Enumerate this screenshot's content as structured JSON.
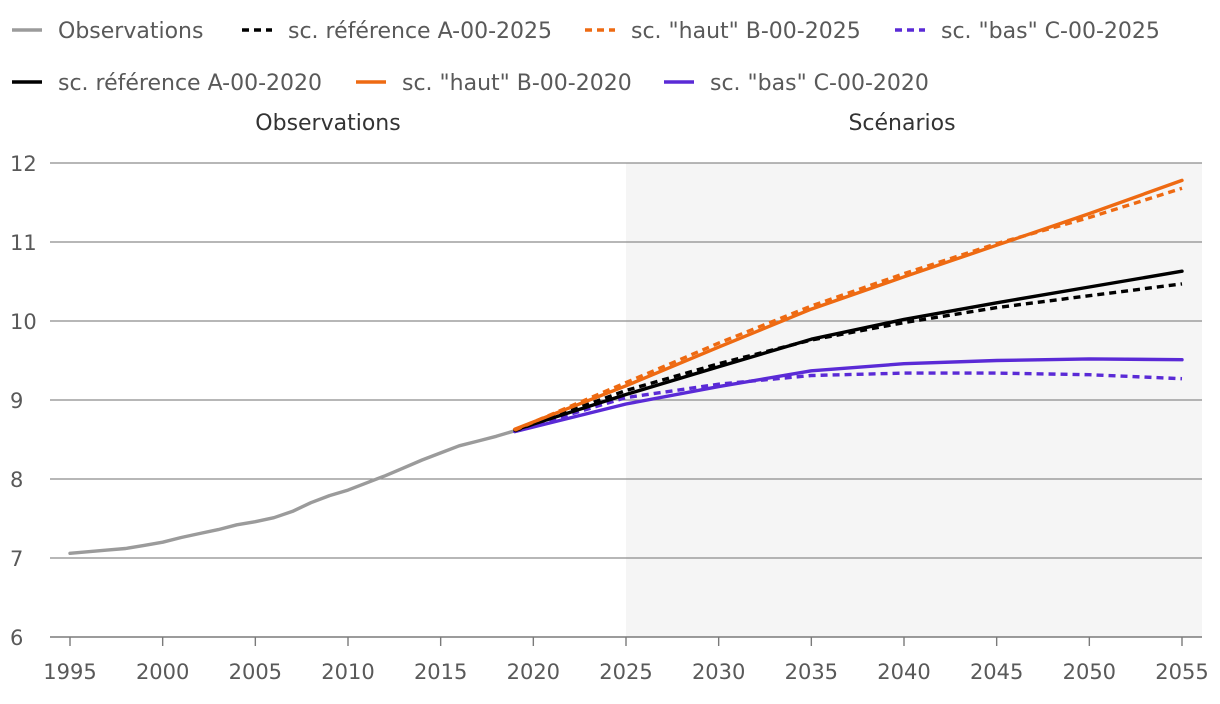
{
  "chart_data": {
    "type": "line",
    "title": "",
    "xlabel": "",
    "ylabel": "",
    "xlim": [
      1995,
      2055
    ],
    "ylim": [
      6,
      12
    ],
    "xticks": [
      "1995",
      "2000",
      "2005",
      "2010",
      "2015",
      "2020",
      "2025",
      "2030",
      "2035",
      "2040",
      "2045",
      "2050",
      "2055"
    ],
    "yticks": [
      "6",
      "7",
      "8",
      "9",
      "10",
      "11",
      "12"
    ],
    "grid": true,
    "legend_position": "top",
    "regions": [
      {
        "label": "Observations",
        "from": 1995,
        "to": 2025
      },
      {
        "label": "Scénarios",
        "from": 2025,
        "to": 2056,
        "shaded": true
      }
    ],
    "series": [
      {
        "name": "Observations",
        "color": "#9b9b9b",
        "dash": "solid",
        "x": [
          1995,
          1996,
          1997,
          1998,
          1999,
          2000,
          2001,
          2002,
          2003,
          2004,
          2005,
          2006,
          2007,
          2008,
          2009,
          2010,
          2011,
          2012,
          2013,
          2014,
          2015,
          2016,
          2017,
          2018,
          2019
        ],
        "y": [
          7.06,
          7.08,
          7.1,
          7.12,
          7.16,
          7.2,
          7.26,
          7.31,
          7.36,
          7.42,
          7.46,
          7.51,
          7.59,
          7.7,
          7.79,
          7.86,
          7.95,
          8.04,
          8.14,
          8.24,
          8.33,
          8.42,
          8.48,
          8.54,
          8.61
        ]
      },
      {
        "name": "sc. référence A-00-2025",
        "color": "#000000",
        "dash": "dashed",
        "x": [
          2019,
          2025,
          2030,
          2035,
          2040,
          2045,
          2050,
          2055
        ],
        "y": [
          8.61,
          9.12,
          9.46,
          9.76,
          9.98,
          10.17,
          10.32,
          10.47
        ]
      },
      {
        "name": "sc. \"haut\" B-00-2025",
        "color": "#ee6a12",
        "dash": "dashed",
        "x": [
          2019,
          2025,
          2030,
          2035,
          2040,
          2045,
          2050,
          2055
        ],
        "y": [
          8.62,
          9.22,
          9.72,
          10.19,
          10.6,
          10.98,
          11.31,
          11.68
        ]
      },
      {
        "name": "sc. \"bas\" C-00-2025",
        "color": "#5a2ad6",
        "dash": "dashed",
        "x": [
          2019,
          2025,
          2030,
          2035,
          2040,
          2045,
          2050,
          2055
        ],
        "y": [
          8.61,
          9.03,
          9.2,
          9.31,
          9.34,
          9.34,
          9.32,
          9.27
        ]
      },
      {
        "name": "sc. référence A-00-2020",
        "color": "#000000",
        "dash": "solid",
        "x": [
          2019,
          2025,
          2030,
          2035,
          2040,
          2045,
          2050,
          2055
        ],
        "y": [
          8.62,
          9.07,
          9.42,
          9.77,
          10.02,
          10.23,
          10.43,
          10.63
        ]
      },
      {
        "name": "sc. \"haut\" B-00-2020",
        "color": "#ee6a12",
        "dash": "solid",
        "x": [
          2019,
          2025,
          2030,
          2035,
          2040,
          2045,
          2050,
          2055
        ],
        "y": [
          8.63,
          9.18,
          9.67,
          10.15,
          10.56,
          10.96,
          11.36,
          11.78
        ]
      },
      {
        "name": "sc. \"bas\" C-00-2020",
        "color": "#5a2ad6",
        "dash": "solid",
        "x": [
          2019,
          2025,
          2030,
          2035,
          2040,
          2045,
          2050,
          2055
        ],
        "y": [
          8.6,
          8.95,
          9.17,
          9.37,
          9.46,
          9.5,
          9.52,
          9.51
        ]
      }
    ]
  }
}
